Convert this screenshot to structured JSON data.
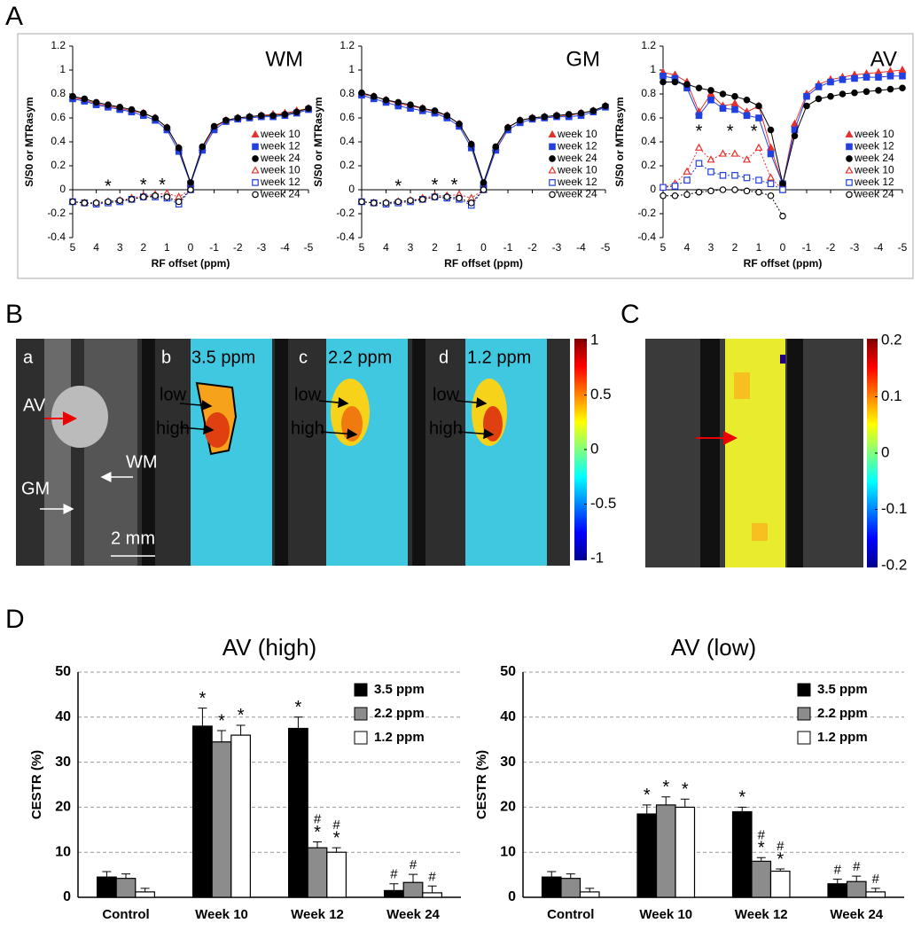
{
  "panel_labels": [
    "A",
    "B",
    "C",
    "D"
  ],
  "image_b": {
    "labels": [
      "a",
      "b",
      "c",
      "d"
    ],
    "offsets": [
      "3.5 ppm",
      "2.2 ppm",
      "1.2 ppm"
    ],
    "low": "low",
    "high": "high",
    "regions": [
      "AV",
      "WM",
      "GM"
    ],
    "scale": "2 mm",
    "colorbar": {
      "lim": [
        -1,
        1
      ],
      "ticks": [
        1,
        0.5,
        0,
        -0.5,
        -1
      ]
    }
  },
  "image_c": {
    "colorbar": {
      "lim": [
        -0.2,
        0.2
      ],
      "ticks": [
        0.2,
        0.1,
        0,
        -0.1,
        -0.2
      ]
    }
  },
  "chart_data": [
    {
      "type": "line",
      "title": "WM",
      "xlabel": "RF offset (ppm)",
      "ylabel": "S/S0 or MTRasym",
      "x": [
        5,
        4.5,
        4,
        3.5,
        3,
        2.5,
        2,
        1.5,
        1,
        0.5,
        0,
        -0.5,
        -1,
        -1.5,
        -2,
        -2.5,
        -3,
        -3.5,
        -4,
        -4.5,
        -5
      ],
      "xlim": [
        5,
        -5
      ],
      "xticks": [
        5,
        4,
        3,
        2,
        1,
        0,
        -1,
        -2,
        -3,
        -4,
        -5
      ],
      "ylim": [
        -0.4,
        1.2
      ],
      "yticks": [
        1.2,
        1,
        0.8,
        0.6,
        0.4,
        0.2,
        0,
        -0.2,
        -0.4
      ],
      "legend": "lower right",
      "series": [
        {
          "name": "week 10",
          "color": "#e8302a",
          "marker": "triangle",
          "open": false,
          "values": [
            0.77,
            0.75,
            0.72,
            0.7,
            0.68,
            0.66,
            0.64,
            0.6,
            0.52,
            0.35,
            0.05,
            0.35,
            0.52,
            0.58,
            0.6,
            0.61,
            0.62,
            0.63,
            0.64,
            0.66,
            0.68
          ]
        },
        {
          "name": "week 12",
          "color": "#2040e0",
          "marker": "square",
          "open": false,
          "values": [
            0.76,
            0.74,
            0.71,
            0.69,
            0.67,
            0.65,
            0.62,
            0.58,
            0.5,
            0.32,
            0.05,
            0.33,
            0.5,
            0.57,
            0.59,
            0.6,
            0.61,
            0.61,
            0.62,
            0.64,
            0.67
          ]
        },
        {
          "name": "week 24",
          "color": "#000000",
          "marker": "circle",
          "open": false,
          "values": [
            0.78,
            0.76,
            0.73,
            0.71,
            0.69,
            0.67,
            0.64,
            0.6,
            0.52,
            0.35,
            0.06,
            0.36,
            0.53,
            0.58,
            0.6,
            0.61,
            0.62,
            0.62,
            0.63,
            0.65,
            0.68
          ]
        },
        {
          "name": "week 10",
          "color": "#e8302a",
          "marker": "triangle",
          "open": true,
          "values": [
            -0.1,
            -0.11,
            -0.11,
            -0.1,
            -0.09,
            -0.07,
            -0.05,
            -0.04,
            -0.03,
            -0.06,
            0,
            null,
            null,
            null,
            null,
            null,
            null,
            null,
            null,
            null,
            null
          ]
        },
        {
          "name": "week 12",
          "color": "#2040e0",
          "marker": "square",
          "open": true,
          "values": [
            -0.1,
            -0.11,
            -0.12,
            -0.11,
            -0.1,
            -0.08,
            -0.06,
            -0.06,
            -0.07,
            -0.12,
            0,
            null,
            null,
            null,
            null,
            null,
            null,
            null,
            null,
            null,
            null
          ]
        },
        {
          "name": "week 24",
          "color": "#000000",
          "marker": "circle",
          "open": true,
          "values": [
            -0.1,
            -0.11,
            -0.11,
            -0.1,
            -0.09,
            -0.08,
            -0.06,
            -0.05,
            -0.06,
            -0.1,
            0,
            null,
            null,
            null,
            null,
            null,
            null,
            null,
            null,
            null,
            null
          ]
        }
      ],
      "annotations": [
        {
          "text": "*",
          "x": 3.5,
          "y": 0.02
        },
        {
          "text": "*",
          "x": 2,
          "y": 0.03
        },
        {
          "text": "*",
          "x": 1.2,
          "y": 0.03
        }
      ]
    },
    {
      "type": "line",
      "title": "GM",
      "xlabel": "RF offset (ppm)",
      "ylabel": "S/S0 or MTRasym",
      "x": [
        5,
        4.5,
        4,
        3.5,
        3,
        2.5,
        2,
        1.5,
        1,
        0.5,
        0,
        -0.5,
        -1,
        -1.5,
        -2,
        -2.5,
        -3,
        -3.5,
        -4,
        -4.5,
        -5
      ],
      "xlim": [
        5,
        -5
      ],
      "xticks": [
        5,
        4,
        3,
        2,
        1,
        0,
        -1,
        -2,
        -3,
        -4,
        -5
      ],
      "ylim": [
        -0.4,
        1.2
      ],
      "yticks": [
        1.2,
        1,
        0.8,
        0.6,
        0.4,
        0.2,
        0,
        -0.2,
        -0.4
      ],
      "legend": "lower right",
      "series": [
        {
          "name": "week 10",
          "color": "#e8302a",
          "marker": "triangle",
          "open": false,
          "values": [
            0.8,
            0.78,
            0.75,
            0.72,
            0.7,
            0.68,
            0.65,
            0.62,
            0.55,
            0.38,
            0.05,
            0.35,
            0.52,
            0.58,
            0.6,
            0.61,
            0.62,
            0.62,
            0.64,
            0.66,
            0.7
          ]
        },
        {
          "name": "week 12",
          "color": "#2040e0",
          "marker": "square",
          "open": false,
          "values": [
            0.79,
            0.76,
            0.73,
            0.7,
            0.68,
            0.66,
            0.64,
            0.6,
            0.53,
            0.35,
            0.04,
            0.33,
            0.5,
            0.56,
            0.59,
            0.6,
            0.61,
            0.61,
            0.62,
            0.65,
            0.69
          ]
        },
        {
          "name": "week 24",
          "color": "#000000",
          "marker": "circle",
          "open": false,
          "values": [
            0.81,
            0.78,
            0.75,
            0.73,
            0.71,
            0.68,
            0.66,
            0.62,
            0.55,
            0.38,
            0.06,
            0.36,
            0.52,
            0.58,
            0.6,
            0.61,
            0.62,
            0.63,
            0.64,
            0.66,
            0.7
          ]
        },
        {
          "name": "week 10",
          "color": "#e8302a",
          "marker": "triangle",
          "open": true,
          "values": [
            -0.1,
            -0.11,
            -0.11,
            -0.1,
            -0.09,
            -0.07,
            -0.05,
            -0.05,
            -0.04,
            -0.07,
            0,
            null,
            null,
            null,
            null,
            null,
            null,
            null,
            null,
            null,
            null
          ]
        },
        {
          "name": "week 12",
          "color": "#2040e0",
          "marker": "square",
          "open": true,
          "values": [
            -0.1,
            -0.11,
            -0.12,
            -0.11,
            -0.1,
            -0.08,
            -0.06,
            -0.07,
            -0.08,
            -0.13,
            0,
            null,
            null,
            null,
            null,
            null,
            null,
            null,
            null,
            null,
            null
          ]
        },
        {
          "name": "week 24",
          "color": "#000000",
          "marker": "circle",
          "open": true,
          "values": [
            -0.1,
            -0.11,
            -0.11,
            -0.1,
            -0.09,
            -0.08,
            -0.06,
            -0.06,
            -0.07,
            -0.11,
            0,
            null,
            null,
            null,
            null,
            null,
            null,
            null,
            null,
            null,
            null
          ]
        }
      ],
      "annotations": [
        {
          "text": "*",
          "x": 3.5,
          "y": 0.02
        },
        {
          "text": "*",
          "x": 2,
          "y": 0.03
        },
        {
          "text": "*",
          "x": 1.2,
          "y": 0.03
        }
      ]
    },
    {
      "type": "line",
      "title": "AV",
      "xlabel": "RF offset (ppm)",
      "ylabel": "S/S0 or MTRasym",
      "x": [
        5,
        4.5,
        4,
        3.5,
        3,
        2.5,
        2,
        1.5,
        1,
        0.5,
        0,
        -0.5,
        -1,
        -1.5,
        -2,
        -2.5,
        -3,
        -3.5,
        -4,
        -4.5,
        -5
      ],
      "xlim": [
        5,
        -5
      ],
      "xticks": [
        5,
        4,
        3,
        2,
        1,
        0,
        -1,
        -2,
        -3,
        -4,
        -5
      ],
      "ylim": [
        -0.4,
        1.2
      ],
      "yticks": [
        1.2,
        1,
        0.8,
        0.6,
        0.4,
        0.2,
        0,
        -0.2,
        -0.4
      ],
      "legend": "lower right",
      "series": [
        {
          "name": "week 10",
          "color": "#e8302a",
          "marker": "triangle",
          "open": false,
          "values": [
            0.98,
            0.96,
            0.9,
            0.65,
            0.8,
            0.7,
            0.72,
            0.65,
            0.7,
            0.35,
            0.05,
            0.55,
            0.8,
            0.88,
            0.92,
            0.94,
            0.96,
            0.97,
            0.98,
            0.99,
            1.0
          ]
        },
        {
          "name": "week 12",
          "color": "#2040e0",
          "marker": "square",
          "open": false,
          "values": [
            0.95,
            0.93,
            0.85,
            0.62,
            0.75,
            0.68,
            0.67,
            0.62,
            0.6,
            0.3,
            0.05,
            0.5,
            0.78,
            0.86,
            0.9,
            0.92,
            0.93,
            0.94,
            0.94,
            0.95,
            0.95
          ]
        },
        {
          "name": "week 24",
          "color": "#000000",
          "marker": "circle",
          "open": false,
          "values": [
            0.9,
            0.9,
            0.88,
            0.85,
            0.83,
            0.8,
            0.78,
            0.75,
            0.7,
            0.5,
            0.05,
            0.45,
            0.7,
            0.76,
            0.78,
            0.8,
            0.81,
            0.82,
            0.83,
            0.84,
            0.85
          ]
        },
        {
          "name": "week 10",
          "color": "#e8302a",
          "marker": "triangle",
          "open": true,
          "values": [
            0.02,
            0.05,
            0.15,
            0.35,
            0.25,
            0.3,
            0.3,
            0.25,
            0.35,
            0.1,
            0,
            null,
            null,
            null,
            null,
            null,
            null,
            null,
            null,
            null,
            null
          ]
        },
        {
          "name": "week 12",
          "color": "#2040e0",
          "marker": "square",
          "open": true,
          "values": [
            0.02,
            0.03,
            0.08,
            0.22,
            0.15,
            0.12,
            0.12,
            0.1,
            0.08,
            0.05,
            0,
            null,
            null,
            null,
            null,
            null,
            null,
            null,
            null,
            null,
            null
          ]
        },
        {
          "name": "week 24",
          "color": "#000000",
          "marker": "circle",
          "open": true,
          "values": [
            -0.05,
            -0.05,
            -0.04,
            -0.02,
            -0.01,
            0,
            0,
            -0.01,
            -0.02,
            -0.05,
            -0.22,
            null,
            null,
            null,
            null,
            null,
            null,
            null,
            null,
            null,
            null
          ]
        }
      ],
      "annotations": [
        {
          "text": "*",
          "x": 3.5,
          "y": 0.48
        },
        {
          "text": "*",
          "x": 2.2,
          "y": 0.48
        },
        {
          "text": "*",
          "x": 1.2,
          "y": 0.48
        }
      ]
    },
    {
      "type": "bar",
      "title": "AV (high)",
      "ylabel": "CESTR (%)",
      "categories": [
        "Control",
        "Week 10",
        "Week 12",
        "Week 24"
      ],
      "ylim": [
        0,
        50
      ],
      "yticks": [
        0,
        10,
        20,
        30,
        40,
        50
      ],
      "grid": true,
      "legend": "upper right",
      "series": [
        {
          "name": "3.5 ppm",
          "color": "#000000",
          "values": [
            4.5,
            38,
            37.5,
            1.5
          ],
          "errors": [
            1.2,
            4,
            2.5,
            1.5
          ],
          "markers": [
            null,
            [
              "*"
            ],
            [
              "*"
            ],
            [
              "#"
            ]
          ]
        },
        {
          "name": "2.2 ppm",
          "color": "#8c8c8c",
          "values": [
            4.2,
            34.5,
            11,
            3.3
          ],
          "errors": [
            1,
            2.5,
            1.3,
            1.8
          ],
          "markers": [
            null,
            [
              "*"
            ],
            [
              "#",
              "*"
            ],
            [
              "#"
            ]
          ]
        },
        {
          "name": "1.2 ppm",
          "color": "#ffffff",
          "values": [
            1.2,
            36,
            10,
            1
          ],
          "errors": [
            0.8,
            2.2,
            1,
            1.5
          ],
          "markers": [
            null,
            [
              "*"
            ],
            [
              "#",
              "*"
            ],
            [
              "#"
            ]
          ]
        }
      ]
    },
    {
      "type": "bar",
      "title": "AV (low)",
      "ylabel": "CESTR (%)",
      "categories": [
        "Control",
        "Week 10",
        "Week 12",
        "Week 24"
      ],
      "ylim": [
        0,
        50
      ],
      "yticks": [
        0,
        10,
        20,
        30,
        40,
        50
      ],
      "grid": true,
      "legend": "upper right",
      "series": [
        {
          "name": "3.5 ppm",
          "color": "#000000",
          "values": [
            4.5,
            18.5,
            19,
            3
          ],
          "errors": [
            1.2,
            2,
            1,
            1
          ],
          "markers": [
            null,
            [
              "*"
            ],
            [
              "*"
            ],
            [
              "#"
            ]
          ]
        },
        {
          "name": "2.2 ppm",
          "color": "#8c8c8c",
          "values": [
            4.2,
            20.5,
            8,
            3.5
          ],
          "errors": [
            1,
            1.8,
            0.8,
            1.2
          ],
          "markers": [
            null,
            [
              "*"
            ],
            [
              "#",
              "*"
            ],
            [
              "#"
            ]
          ]
        },
        {
          "name": "1.2 ppm",
          "color": "#ffffff",
          "values": [
            1.2,
            20,
            5.8,
            1.2
          ],
          "errors": [
            0.8,
            1.8,
            0.5,
            0.8
          ],
          "markers": [
            null,
            [
              "*"
            ],
            [
              "#",
              "*"
            ],
            [
              "#"
            ]
          ]
        }
      ]
    }
  ]
}
